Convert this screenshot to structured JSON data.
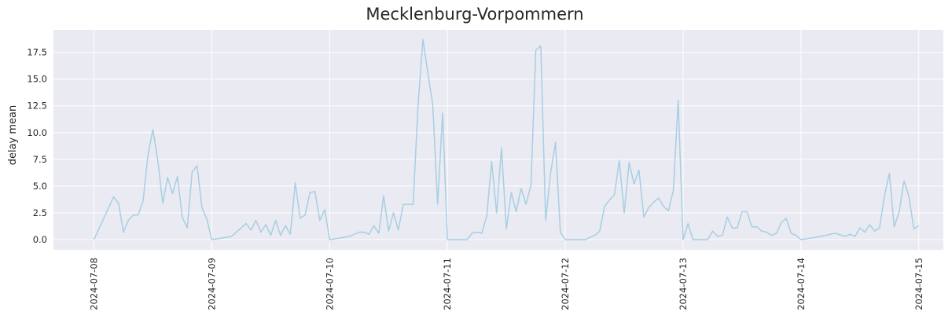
{
  "chart_data": {
    "type": "line",
    "title": "Mecklenburg-Vorpommern",
    "xlabel": "",
    "ylabel": "delay mean",
    "x_ticks": [
      "2024-07-08",
      "2024-07-09",
      "2024-07-10",
      "2024-07-11",
      "2024-07-12",
      "2024-07-13",
      "2024-07-14",
      "2024-07-15"
    ],
    "y_ticks": [
      "0.0",
      "2.5",
      "5.0",
      "7.5",
      "10.0",
      "12.5",
      "15.0",
      "17.5"
    ],
    "xlim": [
      "2024-07-07 15:45",
      "2024-07-15 05:00"
    ],
    "ylim": [
      -0.95,
      19.6
    ],
    "grid": true,
    "line_color": "#a6cfe3",
    "background_color": "#eaeaf2",
    "grid_color": "#ffffff",
    "series": [
      {
        "x": [
          "2024-07-08 00:00",
          "2024-07-08 04:00",
          "2024-07-08 05:00",
          "2024-07-08 06:00",
          "2024-07-08 07:00",
          "2024-07-08 08:00",
          "2024-07-08 09:00",
          "2024-07-08 10:00",
          "2024-07-08 11:00",
          "2024-07-08 12:00",
          "2024-07-08 13:00",
          "2024-07-08 14:00",
          "2024-07-08 15:00",
          "2024-07-08 16:00",
          "2024-07-08 17:00",
          "2024-07-08 18:00",
          "2024-07-08 19:00",
          "2024-07-08 20:00",
          "2024-07-08 21:00",
          "2024-07-08 22:00",
          "2024-07-08 23:00",
          "2024-07-09 00:00",
          "2024-07-09 04:00",
          "2024-07-09 07:00",
          "2024-07-09 08:00",
          "2024-07-09 09:00",
          "2024-07-09 10:00",
          "2024-07-09 11:00",
          "2024-07-09 12:00",
          "2024-07-09 13:00",
          "2024-07-09 14:00",
          "2024-07-09 15:00",
          "2024-07-09 16:00",
          "2024-07-09 17:00",
          "2024-07-09 18:00",
          "2024-07-09 19:00",
          "2024-07-09 20:00",
          "2024-07-09 21:00",
          "2024-07-09 22:00",
          "2024-07-09 23:00",
          "2024-07-10 00:00",
          "2024-07-10 04:00",
          "2024-07-10 06:00",
          "2024-07-10 07:00",
          "2024-07-10 08:00",
          "2024-07-10 09:00",
          "2024-07-10 10:00",
          "2024-07-10 11:00",
          "2024-07-10 12:00",
          "2024-07-10 13:00",
          "2024-07-10 14:00",
          "2024-07-10 15:00",
          "2024-07-10 16:00",
          "2024-07-10 17:00",
          "2024-07-10 18:00",
          "2024-07-10 19:00",
          "2024-07-10 20:00",
          "2024-07-10 21:00",
          "2024-07-10 22:00",
          "2024-07-10 23:00",
          "2024-07-11 00:00",
          "2024-07-11 02:00",
          "2024-07-11 04:00",
          "2024-07-11 05:00",
          "2024-07-11 06:00",
          "2024-07-11 07:00",
          "2024-07-11 08:00",
          "2024-07-11 09:00",
          "2024-07-11 10:00",
          "2024-07-11 11:00",
          "2024-07-11 12:00",
          "2024-07-11 13:00",
          "2024-07-11 14:00",
          "2024-07-11 15:00",
          "2024-07-11 16:00",
          "2024-07-11 17:00",
          "2024-07-11 18:00",
          "2024-07-11 19:00",
          "2024-07-11 20:00",
          "2024-07-11 21:00",
          "2024-07-11 22:00",
          "2024-07-11 23:00",
          "2024-07-12 00:00",
          "2024-07-12 02:00",
          "2024-07-12 04:00",
          "2024-07-12 06:00",
          "2024-07-12 07:00",
          "2024-07-12 08:00",
          "2024-07-12 09:00",
          "2024-07-12 10:00",
          "2024-07-12 11:00",
          "2024-07-12 12:00",
          "2024-07-12 13:00",
          "2024-07-12 14:00",
          "2024-07-12 15:00",
          "2024-07-12 16:00",
          "2024-07-12 17:00",
          "2024-07-12 18:00",
          "2024-07-12 19:00",
          "2024-07-12 20:00",
          "2024-07-12 21:00",
          "2024-07-12 22:00",
          "2024-07-12 23:00",
          "2024-07-13 00:00",
          "2024-07-13 01:00",
          "2024-07-13 02:00",
          "2024-07-13 03:00",
          "2024-07-13 05:00",
          "2024-07-13 06:00",
          "2024-07-13 07:00",
          "2024-07-13 08:00",
          "2024-07-13 09:00",
          "2024-07-13 10:00",
          "2024-07-13 11:00",
          "2024-07-13 12:00",
          "2024-07-13 13:00",
          "2024-07-13 14:00",
          "2024-07-13 15:00",
          "2024-07-13 16:00",
          "2024-07-13 17:00",
          "2024-07-13 18:00",
          "2024-07-13 19:00",
          "2024-07-13 20:00",
          "2024-07-13 21:00",
          "2024-07-13 22:00",
          "2024-07-13 23:00",
          "2024-07-14 00:00",
          "2024-07-14 04:00",
          "2024-07-14 07:00",
          "2024-07-14 09:00",
          "2024-07-14 10:00",
          "2024-07-14 11:00",
          "2024-07-14 12:00",
          "2024-07-14 13:00",
          "2024-07-14 14:00",
          "2024-07-14 15:00",
          "2024-07-14 16:00",
          "2024-07-14 17:00",
          "2024-07-14 18:00",
          "2024-07-14 19:00",
          "2024-07-14 20:00",
          "2024-07-14 21:00",
          "2024-07-14 22:00",
          "2024-07-14 23:00",
          "2024-07-15 00:00"
        ],
        "y": [
          0.0,
          4.0,
          3.4,
          0.7,
          1.8,
          2.3,
          2.3,
          3.6,
          7.9,
          10.3,
          7.4,
          3.4,
          5.8,
          4.3,
          5.9,
          2.1,
          1.1,
          6.3,
          6.9,
          3.0,
          1.9,
          0.0,
          0.3,
          1.5,
          0.9,
          1.8,
          0.7,
          1.4,
          0.4,
          1.8,
          0.4,
          1.3,
          0.5,
          5.3,
          2.0,
          2.3,
          4.4,
          4.5,
          1.8,
          2.8,
          0.0,
          0.3,
          0.7,
          0.7,
          0.5,
          1.3,
          0.6,
          4.1,
          0.8,
          2.5,
          0.9,
          3.3,
          3.3,
          3.3,
          12.5,
          18.7,
          15.6,
          12.6,
          3.3,
          11.8,
          0.0,
          0.0,
          0.0,
          0.6,
          0.7,
          0.6,
          2.2,
          7.3,
          2.5,
          8.6,
          1.0,
          4.4,
          2.6,
          4.8,
          3.3,
          5.1,
          17.7,
          18.1,
          1.8,
          6.2,
          9.1,
          0.7,
          0.0,
          0.0,
          0.0,
          0.4,
          0.8,
          3.1,
          3.7,
          4.2,
          7.4,
          2.5,
          7.2,
          5.2,
          6.5,
          2.1,
          3.0,
          3.5,
          3.9,
          3.1,
          2.7,
          4.6,
          13.0,
          0.0,
          1.5,
          0.0,
          0.0,
          0.0,
          0.8,
          0.3,
          0.4,
          2.1,
          1.1,
          1.1,
          2.6,
          2.6,
          1.2,
          1.2,
          0.8,
          0.7,
          0.4,
          0.6,
          1.6,
          2.0,
          0.6,
          0.4,
          0.0,
          0.3,
          0.6,
          0.3,
          0.5,
          0.3,
          1.1,
          0.7,
          1.4,
          0.8,
          1.1,
          4.1,
          6.2,
          1.2,
          2.6,
          5.5,
          4.0,
          1.0,
          1.3
        ]
      }
    ]
  }
}
